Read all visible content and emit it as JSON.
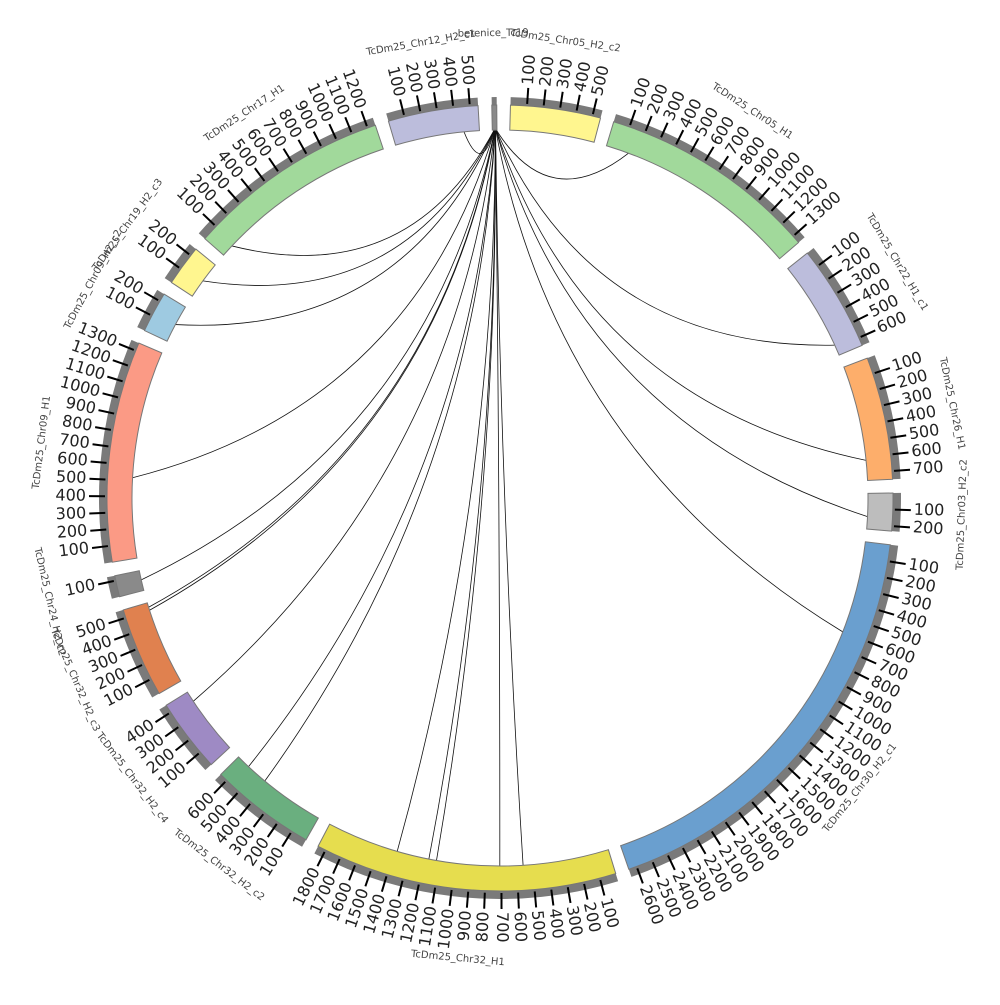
{
  "chart_data": {
    "type": "chord",
    "title": "",
    "tick_interval": 100,
    "segments": [
      {
        "name": "berenice_Tc19",
        "length": 30,
        "color": "#8a8a8a"
      },
      {
        "name": "TcDm25_Chr05_H2_c2",
        "length": 550,
        "color": "#fff68f"
      },
      {
        "name": "TcDm25_Chr05_H1",
        "length": 1350,
        "color": "#a1d99b"
      },
      {
        "name": "TcDm25_Chr22_H1_c1",
        "length": 650,
        "color": "#bcbddc"
      },
      {
        "name": "TcDm25_Chr26_H1",
        "length": 750,
        "color": "#fdae6b"
      },
      {
        "name": "TcDm25_Chr03_H2_c2",
        "length": 230,
        "color": "#bdbdbd"
      },
      {
        "name": "TcDm25_Chr30_H2_c1",
        "length": 2650,
        "color": "#6a9fcf"
      },
      {
        "name": "TcDm25_Chr32_H1",
        "length": 1850,
        "color": "#e6dd4e"
      },
      {
        "name": "TcDm25_Chr32_H2_c2",
        "length": 650,
        "color": "#6aaf7f"
      },
      {
        "name": "TcDm25_Chr32_H2_c4",
        "length": 450,
        "color": "#9e8ac4"
      },
      {
        "name": "TcDm25_Chr32_H2_c3",
        "length": 550,
        "color": "#e0814f"
      },
      {
        "name": "TcDm25_Chr24_H2_c2",
        "length": 130,
        "color": "#8a8a8a"
      },
      {
        "name": "TcDm25_Chr09_H1",
        "length": 1350,
        "color": "#fb9a85"
      },
      {
        "name": "TcDm25_Chr09_H2_c2",
        "length": 250,
        "color": "#9ecae1"
      },
      {
        "name": "TcDm25_Chr19_H2_c3",
        "length": 250,
        "color": "#fff68f"
      },
      {
        "name": "TcDm25_Chr17_H1",
        "length": 1250,
        "color": "#a1d99b"
      },
      {
        "name": "TcDm25_Chr12_H2_c1",
        "length": 550,
        "color": "#bcbddc"
      }
    ],
    "links": [
      {
        "source": "berenice_Tc19",
        "source_pos": 10,
        "target": "TcDm25_Chr12_H2_c1",
        "target_pos": 450
      },
      {
        "source": "berenice_Tc19",
        "source_pos": 12,
        "target": "TcDm25_Chr17_H1",
        "target_pos": 80
      },
      {
        "source": "berenice_Tc19",
        "source_pos": 13,
        "target": "TcDm25_Chr19_H2_c3",
        "target_pos": 120
      },
      {
        "source": "berenice_Tc19",
        "source_pos": 14,
        "target": "TcDm25_Chr09_H2_c2",
        "target_pos": 120
      },
      {
        "source": "berenice_Tc19",
        "source_pos": 15,
        "target": "TcDm25_Chr09_H1",
        "target_pos": 520
      },
      {
        "source": "berenice_Tc19",
        "source_pos": 16,
        "target": "TcDm25_Chr24_H2_c2",
        "target_pos": 70
      },
      {
        "source": "berenice_Tc19",
        "source_pos": 16,
        "target": "TcDm25_Chr32_H2_c3",
        "target_pos": 520
      },
      {
        "source": "berenice_Tc19",
        "source_pos": 17,
        "target": "TcDm25_Chr32_H2_c3",
        "target_pos": 500
      },
      {
        "source": "berenice_Tc19",
        "source_pos": 17,
        "target": "TcDm25_Chr32_H2_c4",
        "target_pos": 380
      },
      {
        "source": "berenice_Tc19",
        "source_pos": 18,
        "target": "TcDm25_Chr32_H2_c2",
        "target_pos": 560
      },
      {
        "source": "berenice_Tc19",
        "source_pos": 18,
        "target": "TcDm25_Chr32_H2_c2",
        "target_pos": 420
      },
      {
        "source": "berenice_Tc19",
        "source_pos": 19,
        "target": "TcDm25_Chr32_H1",
        "target_pos": 1380
      },
      {
        "source": "berenice_Tc19",
        "source_pos": 19,
        "target": "TcDm25_Chr32_H1",
        "target_pos": 1170
      },
      {
        "source": "berenice_Tc19",
        "source_pos": 20,
        "target": "TcDm25_Chr32_H1",
        "target_pos": 1120
      },
      {
        "source": "berenice_Tc19",
        "source_pos": 20,
        "target": "TcDm25_Chr32_H1",
        "target_pos": 710
      },
      {
        "source": "berenice_Tc19",
        "source_pos": 21,
        "target": "TcDm25_Chr32_H1",
        "target_pos": 560
      },
      {
        "source": "berenice_Tc19",
        "source_pos": 22,
        "target": "TcDm25_Chr30_H2_c1",
        "target_pos": 600
      },
      {
        "source": "berenice_Tc19",
        "source_pos": 23,
        "target": "TcDm25_Chr03_H2_c2",
        "target_pos": 150
      },
      {
        "source": "berenice_Tc19",
        "source_pos": 24,
        "target": "TcDm25_Chr26_H1",
        "target_pos": 620
      },
      {
        "source": "berenice_Tc19",
        "source_pos": 25,
        "target": "TcDm25_Chr22_H1_c1",
        "target_pos": 580
      },
      {
        "source": "berenice_Tc19",
        "source_pos": 26,
        "target": "TcDm25_Chr05_H1",
        "target_pos": 150
      }
    ]
  }
}
